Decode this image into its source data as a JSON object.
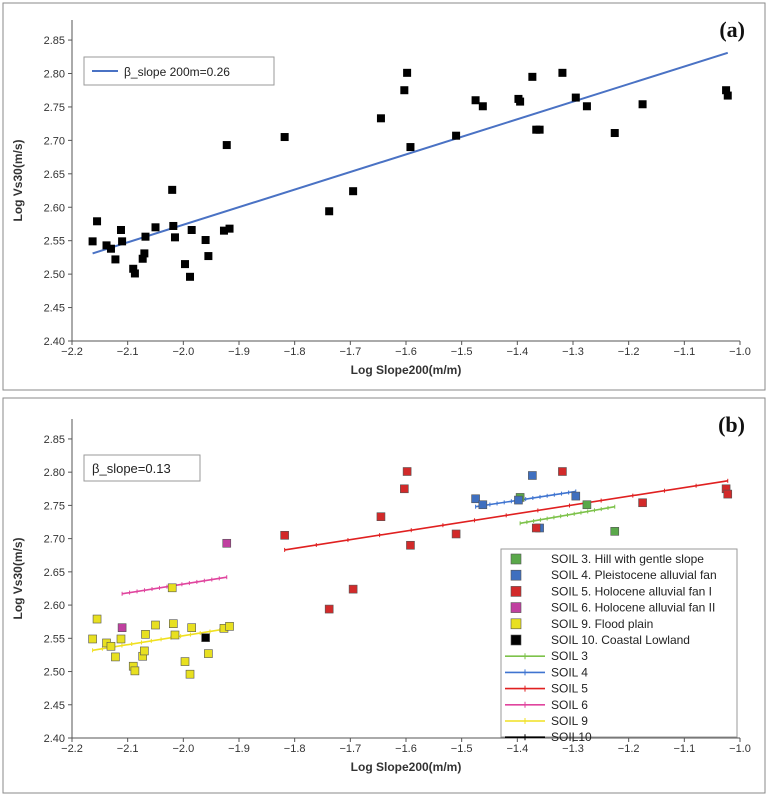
{
  "chart_data": [
    {
      "panel_label": "(a)",
      "type": "scatter",
      "xlabel": "Log Slope200(m/m)",
      "ylabel": "Log Vs30(m/s)",
      "xlim": [
        -2.2,
        -1.0
      ],
      "ylim": [
        2.4,
        2.88
      ],
      "xticks": [
        -2.2,
        -2.1,
        -2.0,
        -1.9,
        -1.8,
        -1.7,
        -1.6,
        -1.5,
        -1.4,
        -1.3,
        -1.2,
        -1.1,
        -1.0
      ],
      "xtick_labels": [
        "−2.2",
        "−2.1",
        "−2.0",
        "−1.9",
        "−1.8",
        "−1.7",
        "−1.6",
        "−1.5",
        "−1.4",
        "−1.3",
        "−1.2",
        "−1.1",
        "−1.0"
      ],
      "yticks": [
        2.4,
        2.45,
        2.5,
        2.55,
        2.6,
        2.65,
        2.7,
        2.75,
        2.8,
        2.85
      ],
      "ytick_labels": [
        "2.40",
        "2.45",
        "2.50",
        "2.55",
        "2.60",
        "2.65",
        "2.70",
        "2.75",
        "2.80",
        "2.85"
      ],
      "legend_position": "top-left",
      "legend": [
        {
          "label": "β_slope 200m=0.26",
          "color": "#4a72c4"
        }
      ],
      "points": {
        "color": "#000000",
        "x": [
          -2.163,
          -2.155,
          -2.138,
          -2.13,
          -2.122,
          -2.112,
          -2.11,
          -2.09,
          -2.087,
          -2.073,
          -2.07,
          -2.068,
          -2.05,
          -2.02,
          -2.018,
          -2.015,
          -1.997,
          -1.988,
          -1.985,
          -1.96,
          -1.955,
          -1.927,
          -1.922,
          -1.917,
          -1.818,
          -1.738,
          -1.695,
          -1.645,
          -1.603,
          -1.598,
          -1.592,
          -1.51,
          -1.475,
          -1.462,
          -1.398,
          -1.395,
          -1.373,
          -1.366,
          -1.36,
          -1.319,
          -1.295,
          -1.275,
          -1.225,
          -1.175,
          -1.025,
          -1.022
        ],
        "y": [
          2.549,
          2.579,
          2.543,
          2.538,
          2.522,
          2.566,
          2.549,
          2.508,
          2.501,
          2.523,
          2.531,
          2.556,
          2.57,
          2.626,
          2.572,
          2.555,
          2.515,
          2.496,
          2.566,
          2.551,
          2.527,
          2.565,
          2.693,
          2.568,
          2.705,
          2.594,
          2.624,
          2.733,
          2.775,
          2.801,
          2.69,
          2.707,
          2.76,
          2.751,
          2.762,
          2.758,
          2.795,
          2.716,
          2.716,
          2.801,
          2.764,
          2.751,
          2.711,
          2.754,
          2.775,
          2.767
        ]
      },
      "lines": [
        {
          "name": "β_slope 200m=0.26",
          "color": "#4a72c4",
          "x": [
            -2.163,
            -1.022
          ],
          "y": [
            2.531,
            2.831
          ]
        }
      ]
    },
    {
      "panel_label": "(b)",
      "type": "scatter",
      "xlabel": "Log Slope200(m/m)",
      "ylabel": "Log Vs30(m/s)",
      "xlim": [
        -2.2,
        -1.0
      ],
      "ylim": [
        2.4,
        2.88
      ],
      "xticks": [
        -2.2,
        -2.1,
        -2.0,
        -1.9,
        -1.8,
        -1.7,
        -1.6,
        -1.5,
        -1.4,
        -1.3,
        -1.2,
        -1.1,
        -1.0
      ],
      "xtick_labels": [
        "−2.2",
        "−2.1",
        "−2.0",
        "−1.9",
        "−1.8",
        "−1.7",
        "−1.6",
        "−1.5",
        "−1.4",
        "−1.3",
        "−1.2",
        "−1.1",
        "−1.0"
      ],
      "yticks": [
        2.4,
        2.45,
        2.5,
        2.55,
        2.6,
        2.65,
        2.7,
        2.75,
        2.8,
        2.85
      ],
      "ytick_labels": [
        "2.40",
        "2.45",
        "2.50",
        "2.55",
        "2.60",
        "2.65",
        "2.70",
        "2.75",
        "2.80",
        "2.85"
      ],
      "annotation": "β_slope=0.13",
      "legend_position": "bottom-right",
      "point_series": [
        {
          "name": "SOIL 3. Hill with gentle slope",
          "color": "#5aa84a",
          "x": [
            -1.395,
            -1.275,
            -1.225
          ],
          "y": [
            2.762,
            2.751,
            2.711
          ]
        },
        {
          "name": "SOIL 4. Pleistocene alluvial fan",
          "color": "#3f6fbf",
          "x": [
            -1.475,
            -1.462,
            -1.398,
            -1.373,
            -1.36,
            -1.295
          ],
          "y": [
            2.76,
            2.751,
            2.758,
            2.795,
            2.716,
            2.764
          ]
        },
        {
          "name": "SOIL 5. Holocene alluvial fan I",
          "color": "#d22a2a",
          "x": [
            -1.818,
            -1.738,
            -1.695,
            -1.645,
            -1.603,
            -1.598,
            -1.592,
            -1.51,
            -1.366,
            -1.319,
            -1.175,
            -1.025,
            -1.022
          ],
          "y": [
            2.705,
            2.594,
            2.624,
            2.733,
            2.775,
            2.801,
            2.69,
            2.707,
            2.716,
            2.801,
            2.754,
            2.775,
            2.767
          ]
        },
        {
          "name": "SOIL 6. Holocene alluvial fan II",
          "color": "#c040a0",
          "x": [
            -2.11,
            -1.922
          ],
          "y": [
            2.566,
            2.693
          ]
        },
        {
          "name": "SOIL 9. Flood plain",
          "color": "#e8e020",
          "x": [
            -2.163,
            -2.155,
            -2.138,
            -2.13,
            -2.122,
            -2.112,
            -2.09,
            -2.087,
            -2.073,
            -2.07,
            -2.068,
            -2.05,
            -2.02,
            -2.018,
            -2.015,
            -1.997,
            -1.988,
            -1.985,
            -1.955,
            -1.927,
            -1.917
          ],
          "y": [
            2.549,
            2.579,
            2.543,
            2.538,
            2.522,
            2.549,
            2.508,
            2.501,
            2.523,
            2.531,
            2.556,
            2.57,
            2.626,
            2.572,
            2.555,
            2.515,
            2.496,
            2.566,
            2.527,
            2.565,
            2.568
          ]
        },
        {
          "name": "SOIL 10. Coastal Lowland",
          "color": "#000000",
          "x": [
            -1.96
          ],
          "y": [
            2.551
          ]
        }
      ],
      "line_series": [
        {
          "name": "SOIL 3",
          "color": "#7dc24a",
          "x": [
            -1.395,
            -1.225
          ],
          "y": [
            2.723,
            2.748
          ]
        },
        {
          "name": "SOIL 4",
          "color": "#3f74d0",
          "x": [
            -1.475,
            -1.295
          ],
          "y": [
            2.748,
            2.771
          ]
        },
        {
          "name": "SOIL 5",
          "color": "#e02020",
          "x": [
            -1.818,
            -1.022
          ],
          "y": [
            2.683,
            2.787
          ]
        },
        {
          "name": "SOIL 6",
          "color": "#e0459e",
          "x": [
            -2.11,
            -1.922
          ],
          "y": [
            2.617,
            2.642
          ]
        },
        {
          "name": "SOIL 9",
          "color": "#f0e020",
          "x": [
            -2.163,
            -1.917
          ],
          "y": [
            2.532,
            2.565
          ]
        },
        {
          "name": "SOIL10",
          "color": "#000000",
          "x": [],
          "y": []
        }
      ]
    }
  ]
}
